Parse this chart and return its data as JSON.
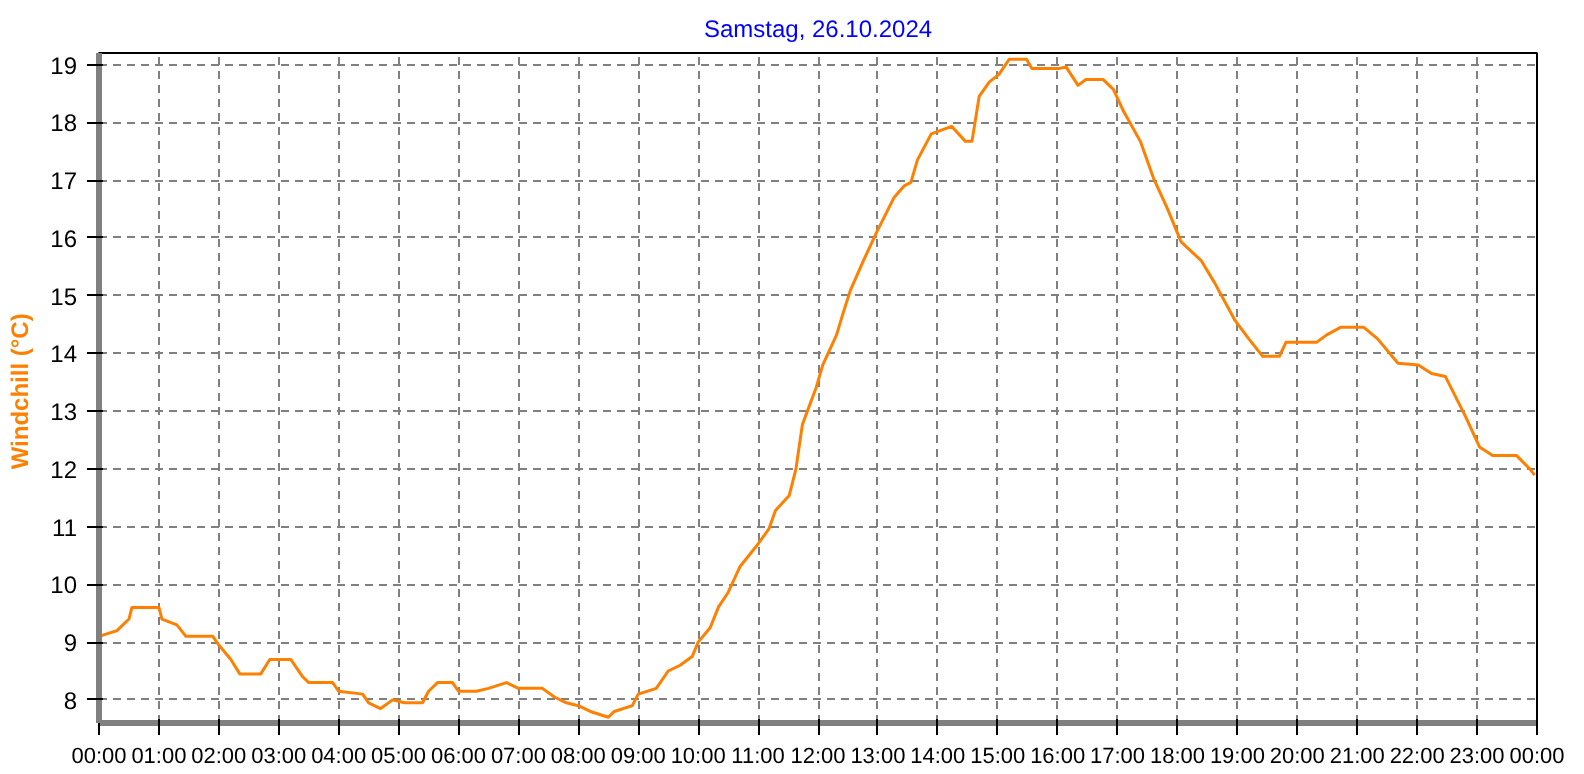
{
  "chart_data": {
    "type": "line",
    "title": "Samstag, 26.10.2024",
    "ylabel": "Windchill  (°C)",
    "x": [
      0,
      0.3,
      0.5,
      0.55,
      1.0,
      1.05,
      1.3,
      1.45,
      1.9,
      2.0,
      2.2,
      2.35,
      2.7,
      2.85,
      3.2,
      3.4,
      3.5,
      3.9,
      4.0,
      4.4,
      4.5,
      4.7,
      4.9,
      5.1,
      5.4,
      5.5,
      5.65,
      5.9,
      6.0,
      6.3,
      6.5,
      6.8,
      7.0,
      7.4,
      7.6,
      7.8,
      8.0,
      8.2,
      8.5,
      8.6,
      8.9,
      9.0,
      9.3,
      9.5,
      9.7,
      9.9,
      10.0,
      10.2,
      10.34,
      10.5,
      10.7,
      11.0,
      11.18,
      11.29,
      11.52,
      11.63,
      11.74,
      11.97,
      12.08,
      12.31,
      12.42,
      12.54,
      12.76,
      12.99,
      13.27,
      13.44,
      13.55,
      13.66,
      13.89,
      14.23,
      14.46,
      14.57,
      14.69,
      14.86,
      15.02,
      15.19,
      15.48,
      15.57,
      16.02,
      16.14,
      16.34,
      16.47,
      16.76,
      16.93,
      17.1,
      17.38,
      17.6,
      17.83,
      18.06,
      18.4,
      18.62,
      18.96,
      19.19,
      19.42,
      19.7,
      19.81,
      20.32,
      20.49,
      20.72,
      21.11,
      21.34,
      21.68,
      22.02,
      22.24,
      22.47,
      22.81,
      23.04,
      23.26,
      23.66,
      23.88,
      23.96
    ],
    "series": [
      {
        "color": "#ff8000",
        "values": [
          9.1,
          9.2,
          9.4,
          9.6,
          9.6,
          9.4,
          9.3,
          9.1,
          9.1,
          8.95,
          8.7,
          8.45,
          8.45,
          8.7,
          8.7,
          8.4,
          8.3,
          8.3,
          8.15,
          8.1,
          7.95,
          7.85,
          8.0,
          7.95,
          7.95,
          8.15,
          8.3,
          8.3,
          8.15,
          8.15,
          8.2,
          8.3,
          8.2,
          8.2,
          8.05,
          7.95,
          7.9,
          7.8,
          7.7,
          7.8,
          7.9,
          8.1,
          8.2,
          8.5,
          8.6,
          8.75,
          9.0,
          9.25,
          9.61,
          9.86,
          10.31,
          10.7,
          10.96,
          11.28,
          11.54,
          11.99,
          12.77,
          13.41,
          13.8,
          14.32,
          14.7,
          15.09,
          15.61,
          16.12,
          16.7,
          16.9,
          16.96,
          17.35,
          17.8,
          17.93,
          17.67,
          17.67,
          18.45,
          18.7,
          18.83,
          19.09,
          19.09,
          18.93,
          18.93,
          18.96,
          18.64,
          18.74,
          18.74,
          18.57,
          18.19,
          17.67,
          17.03,
          16.51,
          15.93,
          15.6,
          15.22,
          14.57,
          14.25,
          13.95,
          13.95,
          14.19,
          14.19,
          14.32,
          14.45,
          14.45,
          14.25,
          13.83,
          13.8,
          13.65,
          13.6,
          12.9,
          12.38,
          12.23,
          12.23,
          12.0,
          11.89
        ]
      }
    ],
    "xlim": [
      0,
      24
    ],
    "ylim": [
      7.6,
      19.2
    ],
    "xticks": [
      {
        "value": 0,
        "label": "00:00"
      },
      {
        "value": 1,
        "label": "01:00"
      },
      {
        "value": 2,
        "label": "02:00"
      },
      {
        "value": 3,
        "label": "03:00"
      },
      {
        "value": 4,
        "label": "04:00"
      },
      {
        "value": 5,
        "label": "05:00"
      },
      {
        "value": 6,
        "label": "06:00"
      },
      {
        "value": 7,
        "label": "07:00"
      },
      {
        "value": 8,
        "label": "08:00"
      },
      {
        "value": 9,
        "label": "09:00"
      },
      {
        "value": 10,
        "label": "10:00"
      },
      {
        "value": 11,
        "label": "11:00"
      },
      {
        "value": 12,
        "label": "12:00"
      },
      {
        "value": 13,
        "label": "13:00"
      },
      {
        "value": 14,
        "label": "14:00"
      },
      {
        "value": 15,
        "label": "15:00"
      },
      {
        "value": 16,
        "label": "16:00"
      },
      {
        "value": 17,
        "label": "17:00"
      },
      {
        "value": 18,
        "label": "18:00"
      },
      {
        "value": 19,
        "label": "19:00"
      },
      {
        "value": 20,
        "label": "20:00"
      },
      {
        "value": 21,
        "label": "21:00"
      },
      {
        "value": 22,
        "label": "22:00"
      },
      {
        "value": 23,
        "label": "23:00"
      },
      {
        "value": 24,
        "label": "00:00"
      }
    ],
    "yticks": [
      8,
      9,
      10,
      11,
      12,
      13,
      14,
      15,
      16,
      17,
      18,
      19
    ],
    "grid": true,
    "line_style": "solid"
  }
}
